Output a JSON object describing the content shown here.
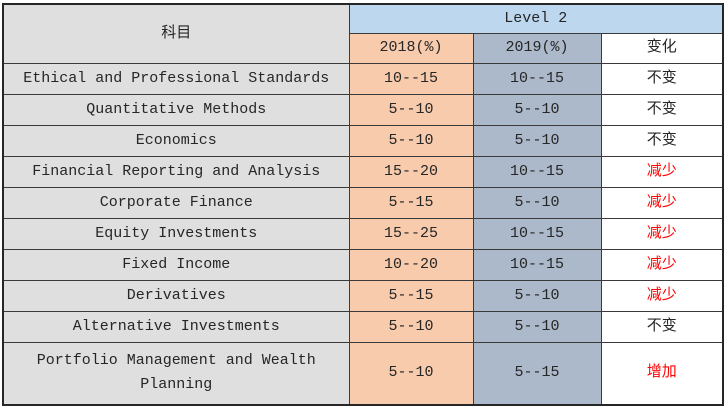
{
  "table": {
    "subject_header": "科目",
    "group_header": "Level 2",
    "col_headers": [
      "2018(%)",
      "2019(%)",
      "变化"
    ],
    "rows": [
      {
        "subject": "Ethical and Professional Standards",
        "y2018": "10--15",
        "y2019": "10--15",
        "change": "不变",
        "change_red": false
      },
      {
        "subject": "Quantitative Methods",
        "y2018": "5--10",
        "y2019": "5--10",
        "change": "不变",
        "change_red": false
      },
      {
        "subject": "Economics",
        "y2018": "5--10",
        "y2019": "5--10",
        "change": "不变",
        "change_red": false
      },
      {
        "subject": "Financial Reporting and Analysis",
        "y2018": "15--20",
        "y2019": "10--15",
        "change": "减少",
        "change_red": true
      },
      {
        "subject": "Corporate Finance",
        "y2018": "5--15",
        "y2019": "5--10",
        "change": "减少",
        "change_red": true
      },
      {
        "subject": "Equity Investments",
        "y2018": "15--25",
        "y2019": "10--15",
        "change": "减少",
        "change_red": true
      },
      {
        "subject": "Fixed Income",
        "y2018": "10--20",
        "y2019": "10--15",
        "change": "减少",
        "change_red": true
      },
      {
        "subject": "Derivatives",
        "y2018": "5--15",
        "y2019": "5--10",
        "change": "减少",
        "change_red": true
      },
      {
        "subject": "Alternative Investments",
        "y2018": "5--10",
        "y2019": "5--10",
        "change": "不变",
        "change_red": false
      },
      {
        "subject": "Portfolio Management and Wealth Planning",
        "y2018": "5--10",
        "y2019": "5--15",
        "change": "增加",
        "change_red": true
      }
    ]
  },
  "colors": {
    "level_header_bg": "#bdd7ee",
    "subject_bg": "#dfdfdf",
    "y2018_bg": "#f8cbad",
    "y2019_bg": "#acb9ca",
    "change_bg": "#ffffff",
    "red_text": "#ff0000",
    "text": "#262626",
    "border_inner": "#3a3a3a",
    "border_outer": "#262626"
  }
}
